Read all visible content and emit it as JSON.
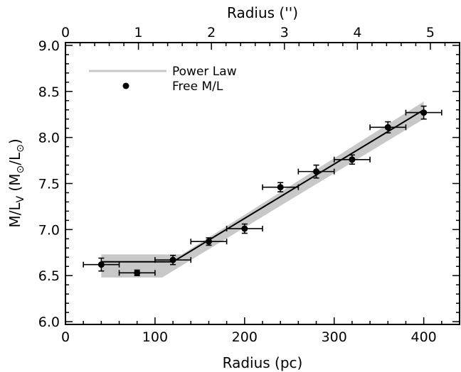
{
  "chart_data": {
    "type": "scatter",
    "title": "",
    "xlabel": "Radius (pc)",
    "ylabel_parts": [
      "M/L",
      "V",
      " (M",
      "⊙",
      "/L",
      "⊙",
      ")"
    ],
    "x2label": "Radius ('')",
    "xlim": [
      0,
      440
    ],
    "ylim": [
      5.97,
      9.03
    ],
    "x2lim": [
      0,
      5.4
    ],
    "x_ticks": [
      0,
      100,
      200,
      300,
      400
    ],
    "y_ticks": [
      "6.0",
      "6.5",
      "7.0",
      "7.5",
      "8.0",
      "8.5",
      "9.0"
    ],
    "x2_ticks": [
      0,
      1,
      2,
      3,
      4,
      5
    ],
    "legend": {
      "position": "top-left",
      "entries": [
        {
          "label": "Power Law",
          "marker": "line",
          "color": "#c8c8c8"
        },
        {
          "label": "Free M/L",
          "marker": "dot",
          "color": "#000000"
        }
      ]
    },
    "series": [
      {
        "name": "Free M/L",
        "color": "#000000",
        "points": [
          {
            "x": 40,
            "y": 6.62,
            "xerr": 20,
            "yerr": 0.07
          },
          {
            "x": 80,
            "y": 6.53,
            "xerr": 20,
            "yerr": 0.03
          },
          {
            "x": 120,
            "y": 6.67,
            "xerr": 20,
            "yerr": 0.05
          },
          {
            "x": 160,
            "y": 6.87,
            "xerr": 20,
            "yerr": 0.04
          },
          {
            "x": 200,
            "y": 7.01,
            "xerr": 20,
            "yerr": 0.05
          },
          {
            "x": 240,
            "y": 7.46,
            "xerr": 20,
            "yerr": 0.05
          },
          {
            "x": 280,
            "y": 7.63,
            "xerr": 20,
            "yerr": 0.07
          },
          {
            "x": 320,
            "y": 7.76,
            "xerr": 20,
            "yerr": 0.05
          },
          {
            "x": 360,
            "y": 8.11,
            "xerr": 20,
            "yerr": 0.06
          },
          {
            "x": 400,
            "y": 8.27,
            "xerr": 20,
            "yerr": 0.07
          }
        ]
      },
      {
        "name": "Power Law",
        "type": "line",
        "color": "#000000",
        "band_color": "#c8c8c8",
        "line": [
          {
            "x": 40,
            "y": 6.65
          },
          {
            "x": 120,
            "y": 6.65
          },
          {
            "x": 400,
            "y": 8.3
          }
        ],
        "band": [
          {
            "x": 40,
            "y_low": 6.48,
            "y_high": 6.73
          },
          {
            "x": 108,
            "y_low": 6.48,
            "y_high": 6.73
          },
          {
            "x": 130,
            "y_low": 6.61,
            "y_high": 6.73
          },
          {
            "x": 400,
            "y_low": 8.2,
            "y_high": 8.39
          }
        ]
      }
    ]
  }
}
